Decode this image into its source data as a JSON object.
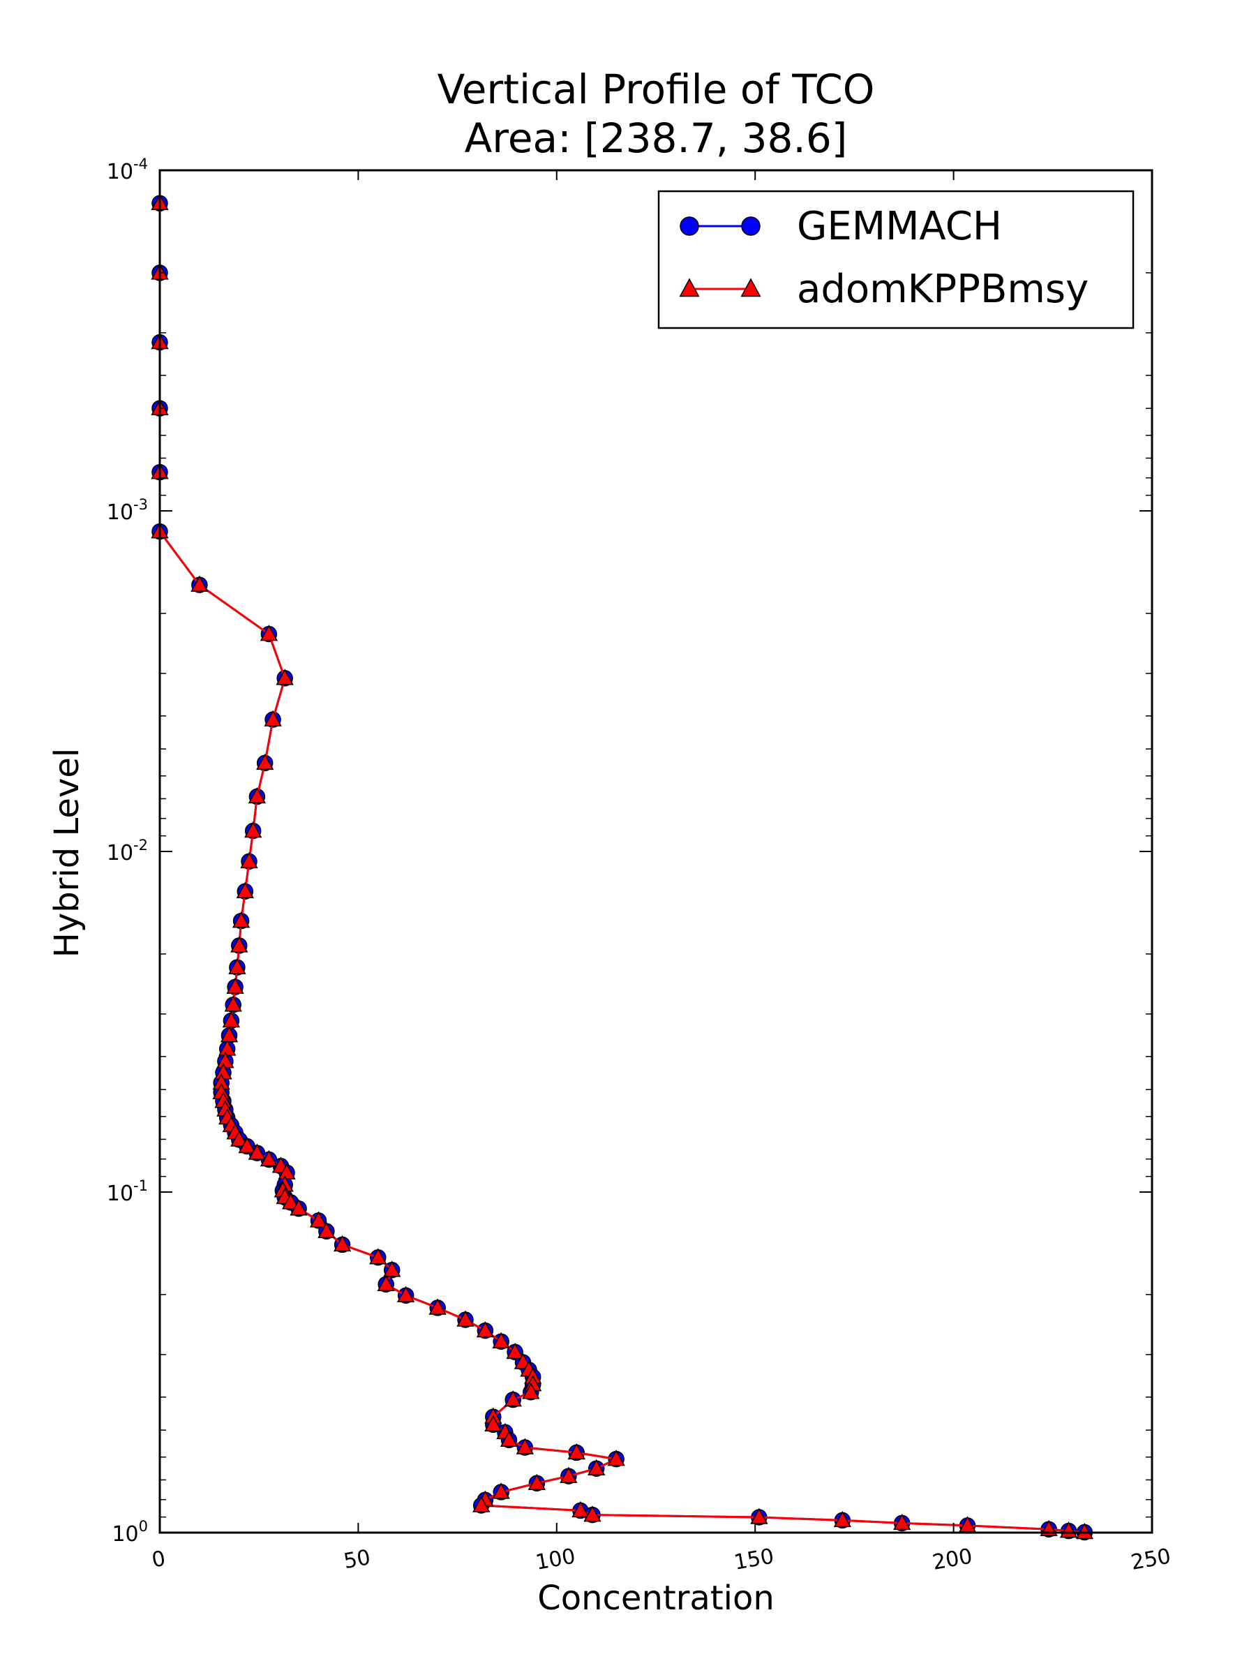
{
  "chart_data": {
    "type": "line",
    "title": "Vertical Profile of TCO",
    "subtitle": "Area: [238.7, 38.6]",
    "xlabel": "Concentration",
    "ylabel": "Hybrid Level",
    "xlim": [
      0,
      250
    ],
    "ylim": [
      1,
      0.0001
    ],
    "yscale": "log",
    "y_inverted": true,
    "grid": false,
    "legend_position": "top-right",
    "x_ticks": [
      "0",
      "50",
      "100",
      "150",
      "200",
      "250"
    ],
    "y_ticks": [
      {
        "base": "10",
        "exp": "-4",
        "value": 0.0001
      },
      {
        "base": "10",
        "exp": "-3",
        "value": 0.001
      },
      {
        "base": "10",
        "exp": "-2",
        "value": 0.01
      },
      {
        "base": "10",
        "exp": "-1",
        "value": 0.1
      },
      {
        "base": "10",
        "exp": "0",
        "value": 1
      }
    ],
    "series": [
      {
        "name": "GEMMACH",
        "color": "#0000ff",
        "marker": "circle",
        "x": [
          0,
          0,
          0,
          0,
          0,
          0,
          10,
          27.5,
          31.5,
          28.5,
          26.5,
          24.5,
          23.5,
          22.5,
          21.5,
          20.5,
          20,
          19.5,
          19,
          18.5,
          18,
          17.5,
          17,
          16.5,
          16,
          15.5,
          15.5,
          16,
          16.5,
          17,
          18,
          19,
          20,
          22,
          24.5,
          27.5,
          30.5,
          32,
          31.5,
          31,
          31.5,
          33,
          35,
          40,
          42,
          46,
          55,
          58.5,
          57,
          62,
          70,
          77,
          82,
          86,
          89.5,
          91.5,
          93,
          94,
          94,
          93.5,
          89,
          84,
          84,
          87,
          88,
          92,
          105,
          115,
          110,
          103,
          95,
          86,
          82,
          81,
          106,
          109,
          151,
          172,
          187,
          203.5,
          224,
          229,
          233
        ],
        "y": [
          0.000125,
          0.0002,
          0.00032,
          0.0005,
          0.00077,
          0.00115,
          0.00165,
          0.0023,
          0.0031,
          0.0041,
          0.0055,
          0.0069,
          0.0087,
          0.0107,
          0.0131,
          0.016,
          0.0189,
          0.0219,
          0.025,
          0.0282,
          0.0314,
          0.0347,
          0.038,
          0.0413,
          0.0446,
          0.0478,
          0.051,
          0.0541,
          0.0573,
          0.0605,
          0.0637,
          0.0669,
          0.0702,
          0.0734,
          0.0768,
          0.0803,
          0.0839,
          0.0877,
          0.0953,
          0.099,
          0.1036,
          0.1073,
          0.1119,
          0.1213,
          0.1304,
          0.1427,
          0.1556,
          0.1695,
          0.1866,
          0.2012,
          0.2188,
          0.2371,
          0.2552,
          0.2748,
          0.2951,
          0.3162,
          0.3327,
          0.3491,
          0.3672,
          0.3868,
          0.4073,
          0.4571,
          0.4819,
          0.5077,
          0.5346,
          0.5623,
          0.5823,
          0.6081,
          0.6486,
          0.6828,
          0.7161,
          0.7601,
          0.8017,
          0.8318,
          0.8614,
          0.8872,
          0.9016,
          0.9204,
          0.938,
          0.9533,
          0.9778,
          0.9886,
          0.9977
        ]
      },
      {
        "name": "adomKPPBmsy",
        "color": "#ff0000",
        "marker": "triangle",
        "x": [
          0,
          0,
          0,
          0,
          0,
          0,
          10,
          27.5,
          31.5,
          28.5,
          26.5,
          24.5,
          23.5,
          22.5,
          21.5,
          20.5,
          20,
          19.5,
          19,
          18.5,
          18,
          17.5,
          17,
          16.5,
          16,
          15.5,
          15.5,
          16,
          16.5,
          17,
          18,
          19,
          20,
          22,
          24.5,
          27.5,
          30.5,
          32,
          31.5,
          31,
          31.5,
          33,
          35,
          40,
          42,
          46,
          55,
          58.5,
          57,
          62,
          70,
          77,
          82,
          86,
          89.5,
          91.5,
          93,
          94,
          94,
          93.5,
          89,
          84,
          84,
          87,
          88,
          92,
          105,
          115,
          110,
          103,
          95,
          86,
          82,
          81,
          106,
          109,
          151,
          172,
          187,
          203.5,
          224,
          229,
          233
        ],
        "y": [
          0.000125,
          0.0002,
          0.00032,
          0.0005,
          0.00077,
          0.00115,
          0.00165,
          0.0023,
          0.0031,
          0.0041,
          0.0055,
          0.0069,
          0.0087,
          0.0107,
          0.0131,
          0.016,
          0.0189,
          0.0219,
          0.025,
          0.0282,
          0.0314,
          0.0347,
          0.038,
          0.0413,
          0.0446,
          0.0478,
          0.051,
          0.0541,
          0.0573,
          0.0605,
          0.0637,
          0.0669,
          0.0702,
          0.0734,
          0.0768,
          0.0803,
          0.0839,
          0.0877,
          0.0953,
          0.099,
          0.1036,
          0.1073,
          0.1119,
          0.1213,
          0.1304,
          0.1427,
          0.1556,
          0.1695,
          0.1866,
          0.2012,
          0.2188,
          0.2371,
          0.2552,
          0.2748,
          0.2951,
          0.3162,
          0.3327,
          0.3491,
          0.3672,
          0.3868,
          0.4073,
          0.4571,
          0.4819,
          0.5077,
          0.5346,
          0.5623,
          0.5823,
          0.6081,
          0.6486,
          0.6828,
          0.7161,
          0.7601,
          0.8017,
          0.8318,
          0.8614,
          0.8872,
          0.9016,
          0.9204,
          0.938,
          0.9533,
          0.9778,
          0.9886,
          0.9977
        ]
      }
    ]
  }
}
